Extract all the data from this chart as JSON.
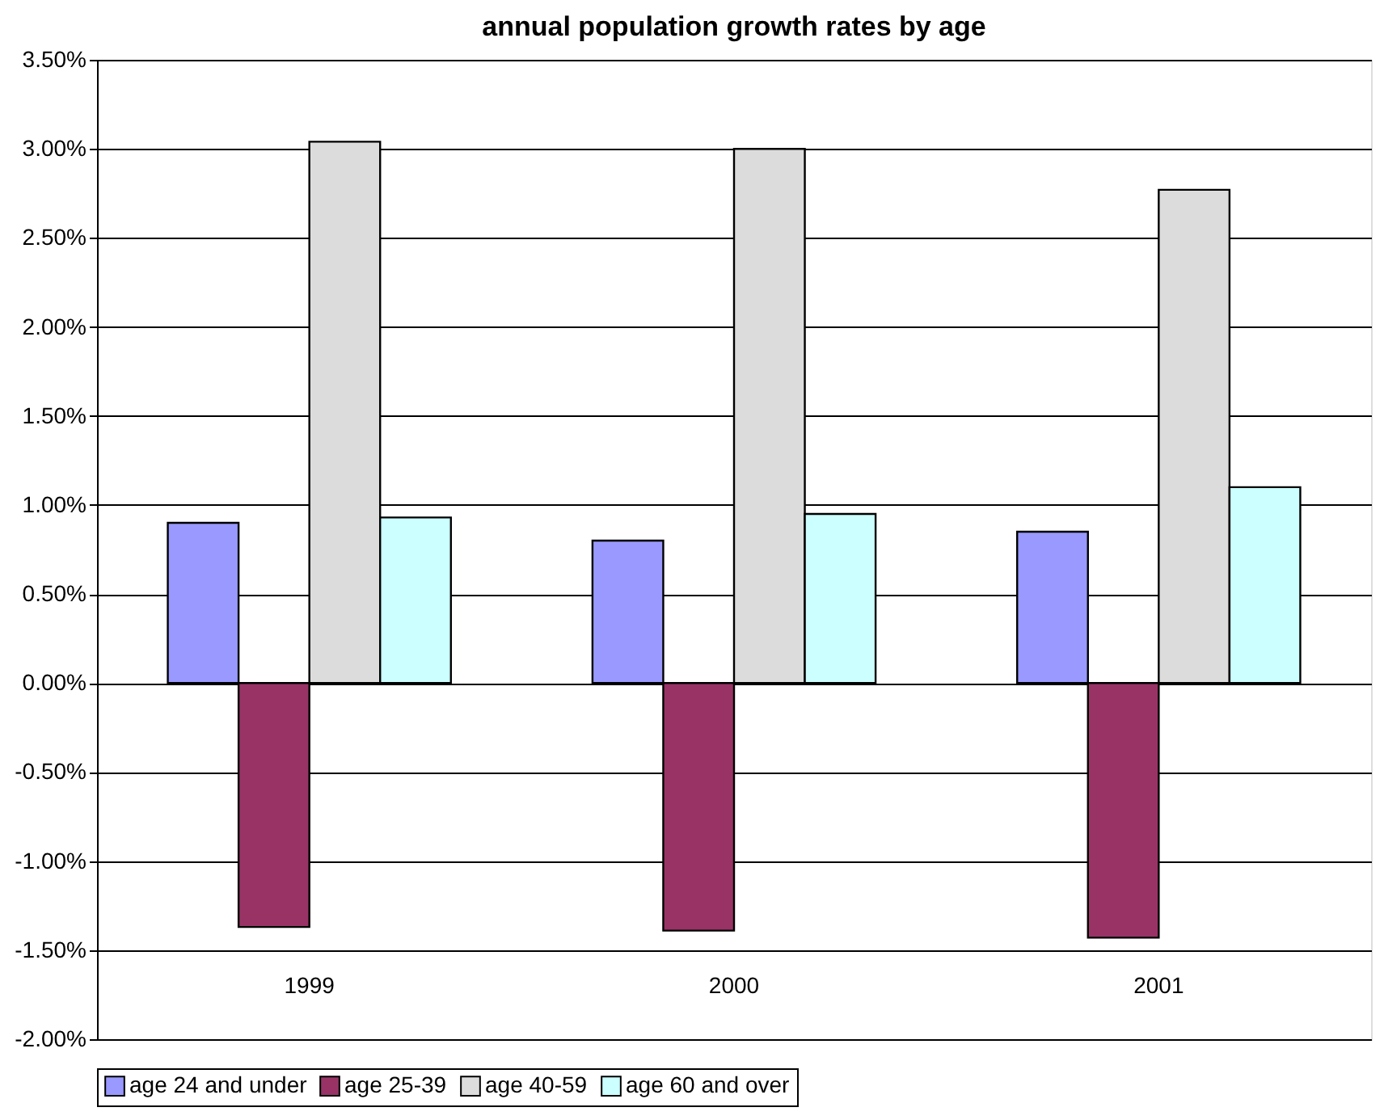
{
  "chart_data": {
    "type": "bar",
    "title": "annual population growth rates by age",
    "categories": [
      "1999",
      "2000",
      "2001"
    ],
    "series": [
      {
        "name": "age 24 and under",
        "color": "#9999ff",
        "values": [
          0.9,
          0.8,
          0.85
        ]
      },
      {
        "name": "age 25-39",
        "color": "#993366",
        "values": [
          -1.37,
          -1.39,
          -1.43
        ]
      },
      {
        "name": "age 40-59",
        "color": "#dcdcdc",
        "values": [
          3.04,
          3.0,
          2.77
        ]
      },
      {
        "name": "age 60 and over",
        "color": "#ccffff",
        "values": [
          0.93,
          0.95,
          1.1
        ]
      }
    ],
    "ylim": [
      -2.0,
      3.5
    ],
    "yticks": [
      {
        "value": -2.0,
        "label": "-2.00%"
      },
      {
        "value": -1.5,
        "label": "-1.50%"
      },
      {
        "value": -1.0,
        "label": "-1.00%"
      },
      {
        "value": -0.5,
        "label": "-0.50%"
      },
      {
        "value": 0,
        "label": "0.00%"
      },
      {
        "value": 0.5,
        "label": "0.50%"
      },
      {
        "value": 1.0,
        "label": "1.00%"
      },
      {
        "value": 1.5,
        "label": "1.50%"
      },
      {
        "value": 2.0,
        "label": "2.00%"
      },
      {
        "value": 2.5,
        "label": "2.50%"
      },
      {
        "value": 3.0,
        "label": "3.00%"
      },
      {
        "value": 3.5,
        "label": "3.50%"
      }
    ],
    "grid": "y",
    "legend": "bottom"
  }
}
